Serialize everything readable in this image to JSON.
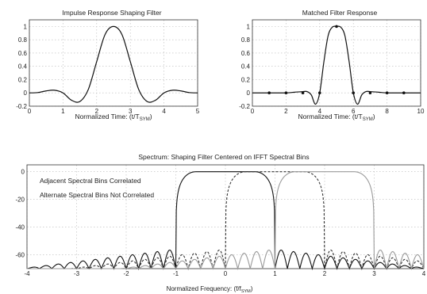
{
  "charts": [
    {
      "type": "line",
      "title": "Impulse Response Shaping Filter",
      "xlabel": "Normalized Time: (t/T",
      "xlabel_sub": "SYM",
      "xlabel_end": ")",
      "xlim": [
        0,
        5
      ],
      "ylim": [
        -0.2,
        1.1
      ],
      "xticks": [
        "0",
        "1",
        "2",
        "3",
        "4",
        "5"
      ],
      "yticks": [
        "-0.2",
        "0",
        "0.2",
        "0.4",
        "0.6",
        "0.8",
        "1"
      ],
      "grid": true,
      "series": [
        {
          "color": "#111111",
          "x": [
            0,
            0.25,
            0.5,
            0.75,
            1.0,
            1.25,
            1.5,
            1.75,
            2.0,
            2.25,
            2.5,
            2.75,
            3.0,
            3.25,
            3.5,
            3.75,
            4.0,
            4.25,
            4.5,
            4.75,
            5.0
          ],
          "y": [
            0,
            0.005,
            0.03,
            0.04,
            0.0,
            -0.11,
            -0.13,
            0.05,
            0.47,
            0.88,
            1.0,
            0.88,
            0.47,
            0.05,
            -0.13,
            -0.11,
            0.0,
            0.04,
            0.03,
            0.005,
            0
          ]
        }
      ]
    },
    {
      "type": "line",
      "title": "Matched Filter Response",
      "xlabel": "Normalized Time: (t/T",
      "xlabel_sub": "SYM",
      "xlabel_end": ")",
      "xlim": [
        0,
        10
      ],
      "ylim": [
        -0.2,
        1.1
      ],
      "xticks": [
        "0",
        "2",
        "4",
        "6",
        "8",
        "10"
      ],
      "yticks": [
        "-0.2",
        "0",
        "0.2",
        "0.4",
        "0.6",
        "0.8",
        "1"
      ],
      "grid": true,
      "series": [
        {
          "color": "#111111",
          "x": [
            0,
            0.5,
            1,
            1.5,
            2,
            2.5,
            3,
            3.25,
            3.5,
            3.75,
            4,
            4.25,
            4.5,
            4.75,
            5,
            5.25,
            5.5,
            5.75,
            6,
            6.25,
            6.5,
            6.75,
            7,
            7.5,
            8,
            8.5,
            9,
            9.5,
            10
          ],
          "y": [
            0,
            0,
            0,
            0,
            0,
            0.01,
            0.02,
            0.02,
            -0.03,
            -0.17,
            0.0,
            0.47,
            0.86,
            0.99,
            1.0,
            0.99,
            0.86,
            0.47,
            0.0,
            -0.17,
            -0.03,
            0.02,
            0.02,
            0.01,
            0,
            0,
            0,
            0,
            0
          ],
          "markers_x": [
            1,
            2,
            3,
            4,
            5,
            6,
            7,
            8,
            9
          ],
          "markers_y": [
            0,
            0,
            0,
            0,
            1,
            0,
            0,
            0,
            0
          ]
        }
      ]
    },
    {
      "type": "line",
      "title": "Spectrum: Shaping Filter Centered on IFFT Spectral Bins",
      "xlabel": "Normalized Frequency: (f/f",
      "xlabel_sub": "SYM",
      "xlabel_end": ")",
      "xlim": [
        -4,
        4
      ],
      "ylim": [
        -70,
        5
      ],
      "xticks": [
        "-4",
        "-3",
        "-2",
        "-1",
        "0",
        "1",
        "2",
        "3",
        "4"
      ],
      "yticks": [
        "-60",
        "-40",
        "-20",
        "0"
      ],
      "grid": true,
      "annotations": [
        "Adjacent Spectral Bins Correlated",
        "Alternate Spectral Bins Not Correlated"
      ],
      "series": [
        {
          "center": 0,
          "dash": "",
          "color": "#111111",
          "passband_db": 0,
          "edge_db": -6,
          "null_floor_db": -70,
          "peak_level_db": -56
        },
        {
          "center": 1,
          "dash": "3 2",
          "color": "#333333",
          "passband_db": 0,
          "edge_db": -6,
          "null_floor_db": -70,
          "peak_level_db": -56
        },
        {
          "center": 2,
          "dash": "",
          "color": "#9a9a9a",
          "passband_db": 0,
          "edge_db": -6,
          "null_floor_db": -70,
          "peak_level_db": -56
        }
      ]
    }
  ]
}
